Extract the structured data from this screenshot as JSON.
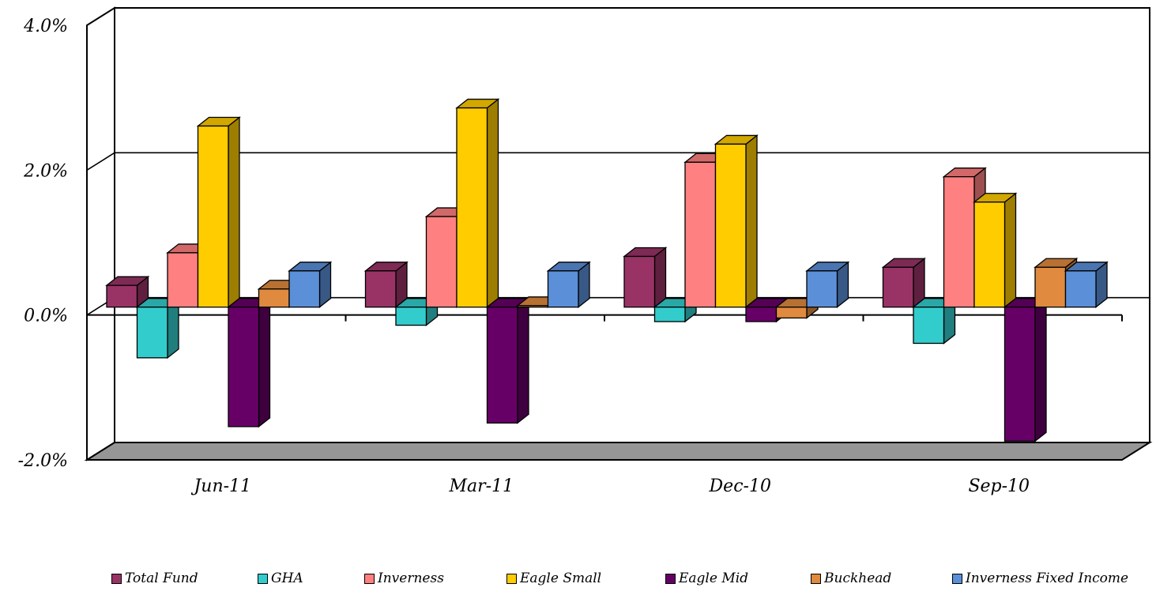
{
  "chart_data": {
    "type": "bar",
    "style": "3d-clustered",
    "categories": [
      "Jun-11",
      "Mar-11",
      "Dec-10",
      "Sep-10"
    ],
    "series": [
      {
        "name": "Total Fund",
        "color": "#993366",
        "values": [
          0.3,
          0.5,
          0.7,
          0.55
        ]
      },
      {
        "name": "GHA",
        "color": "#33CCCC",
        "values": [
          -0.7,
          -0.25,
          -0.2,
          -0.5
        ]
      },
      {
        "name": "Inverness",
        "color": "#FF8080",
        "values": [
          0.75,
          1.25,
          2.0,
          1.8
        ]
      },
      {
        "name": "Eagle Small",
        "color": "#FFCC00",
        "values": [
          2.5,
          2.75,
          2.25,
          1.45
        ]
      },
      {
        "name": "Eagle Mid",
        "color": "#660066",
        "values": [
          -1.65,
          -1.6,
          -0.2,
          -1.85
        ]
      },
      {
        "name": "Buckhead",
        "color": "#DF8A3E",
        "values": [
          0.25,
          0.02,
          -0.15,
          0.55
        ]
      },
      {
        "name": "Inverness Fixed Income",
        "color": "#5B8FD8",
        "values": [
          0.5,
          0.5,
          0.5,
          0.5
        ]
      }
    ],
    "ylim": [
      -2.0,
      4.0
    ],
    "yticks": [
      -2.0,
      0.0,
      2.0,
      4.0
    ],
    "ytick_labels": [
      "-2.0%",
      "0.0%",
      "2.0%",
      "4.0%"
    ],
    "gridlines": [
      2.0,
      0.0
    ],
    "legend": "bottom",
    "title": "",
    "xlabel": "",
    "ylabel": ""
  }
}
